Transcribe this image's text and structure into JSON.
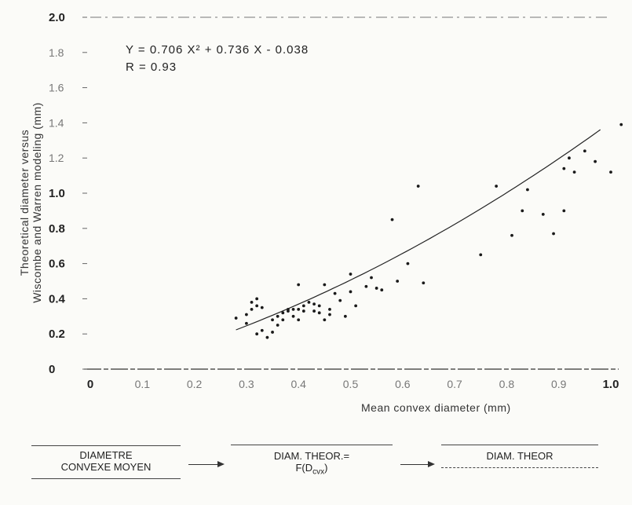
{
  "chart_data": {
    "type": "scatter",
    "title": "",
    "xlabel": "Mean convex diameter (mm)",
    "ylabel_line1": "Theoretical diameter versus",
    "ylabel_line2": "Wiscombe and Warren modeling (mm)",
    "xlim": [
      0,
      1.0
    ],
    "ylim": [
      0,
      2.0
    ],
    "x_ticks": [
      0,
      0.1,
      0.2,
      0.3,
      0.4,
      0.5,
      0.6,
      0.7,
      0.8,
      0.9,
      1.0
    ],
    "x_tick_labels": [
      "0",
      "0.1",
      "0.2",
      "0.3",
      "0.4",
      "0.5",
      "0.6",
      "0.7",
      "0.8",
      "0.9",
      "1.0"
    ],
    "y_ticks": [
      0,
      0.2,
      0.4,
      0.6,
      0.8,
      1.0,
      1.2,
      1.4,
      1.6,
      1.8,
      2.0
    ],
    "y_tick_labels": [
      "0",
      "0.2",
      "0.4",
      "0.6",
      "0.8",
      "1.0",
      "1.2",
      "1.4",
      "1.6",
      "1.8",
      "2.0"
    ],
    "grid": false,
    "fit": {
      "equation_text": "Y = 0.706 X² + 0.736 X - 0.038",
      "r_text": "R = 0.93",
      "a": 0.706,
      "b": 0.736,
      "c": -0.038,
      "x_range": [
        0.28,
        0.98
      ]
    },
    "points": [
      [
        0.28,
        0.29
      ],
      [
        0.3,
        0.26
      ],
      [
        0.3,
        0.31
      ],
      [
        0.31,
        0.34
      ],
      [
        0.31,
        0.38
      ],
      [
        0.32,
        0.36
      ],
      [
        0.32,
        0.4
      ],
      [
        0.32,
        0.2
      ],
      [
        0.33,
        0.22
      ],
      [
        0.33,
        0.35
      ],
      [
        0.34,
        0.18
      ],
      [
        0.35,
        0.28
      ],
      [
        0.35,
        0.21
      ],
      [
        0.36,
        0.25
      ],
      [
        0.36,
        0.3
      ],
      [
        0.37,
        0.32
      ],
      [
        0.37,
        0.28
      ],
      [
        0.38,
        0.34
      ],
      [
        0.38,
        0.33
      ],
      [
        0.39,
        0.3
      ],
      [
        0.39,
        0.34
      ],
      [
        0.4,
        0.28
      ],
      [
        0.4,
        0.34
      ],
      [
        0.4,
        0.48
      ],
      [
        0.41,
        0.33
      ],
      [
        0.41,
        0.36
      ],
      [
        0.42,
        0.38
      ],
      [
        0.43,
        0.37
      ],
      [
        0.43,
        0.33
      ],
      [
        0.44,
        0.36
      ],
      [
        0.44,
        0.32
      ],
      [
        0.45,
        0.48
      ],
      [
        0.45,
        0.28
      ],
      [
        0.46,
        0.34
      ],
      [
        0.46,
        0.31
      ],
      [
        0.47,
        0.43
      ],
      [
        0.48,
        0.39
      ],
      [
        0.49,
        0.3
      ],
      [
        0.5,
        0.44
      ],
      [
        0.5,
        0.54
      ],
      [
        0.51,
        0.36
      ],
      [
        0.53,
        0.47
      ],
      [
        0.54,
        0.52
      ],
      [
        0.55,
        0.46
      ],
      [
        0.56,
        0.45
      ],
      [
        0.58,
        0.85
      ],
      [
        0.59,
        0.5
      ],
      [
        0.61,
        0.6
      ],
      [
        0.63,
        1.04
      ],
      [
        0.64,
        0.49
      ],
      [
        0.75,
        0.65
      ],
      [
        0.78,
        1.04
      ],
      [
        0.81,
        0.76
      ],
      [
        0.83,
        0.9
      ],
      [
        0.84,
        1.02
      ],
      [
        0.87,
        0.88
      ],
      [
        0.89,
        0.77
      ],
      [
        0.91,
        0.9
      ],
      [
        0.91,
        1.14
      ],
      [
        0.92,
        1.2
      ],
      [
        0.93,
        1.12
      ],
      [
        0.95,
        1.24
      ],
      [
        0.97,
        1.18
      ],
      [
        1.0,
        1.12
      ],
      [
        1.02,
        1.39
      ]
    ]
  },
  "flow": {
    "box1_line1": "DIAMETRE",
    "box1_line2": "CONVEXE MOYEN",
    "box2_line1": "DIAM. THEOR.=",
    "box2_line2_prefix": "F(D",
    "box2_line2_sub": "cvx",
    "box2_line2_suffix": ")",
    "box3_line1": "DIAM. THEOR"
  }
}
